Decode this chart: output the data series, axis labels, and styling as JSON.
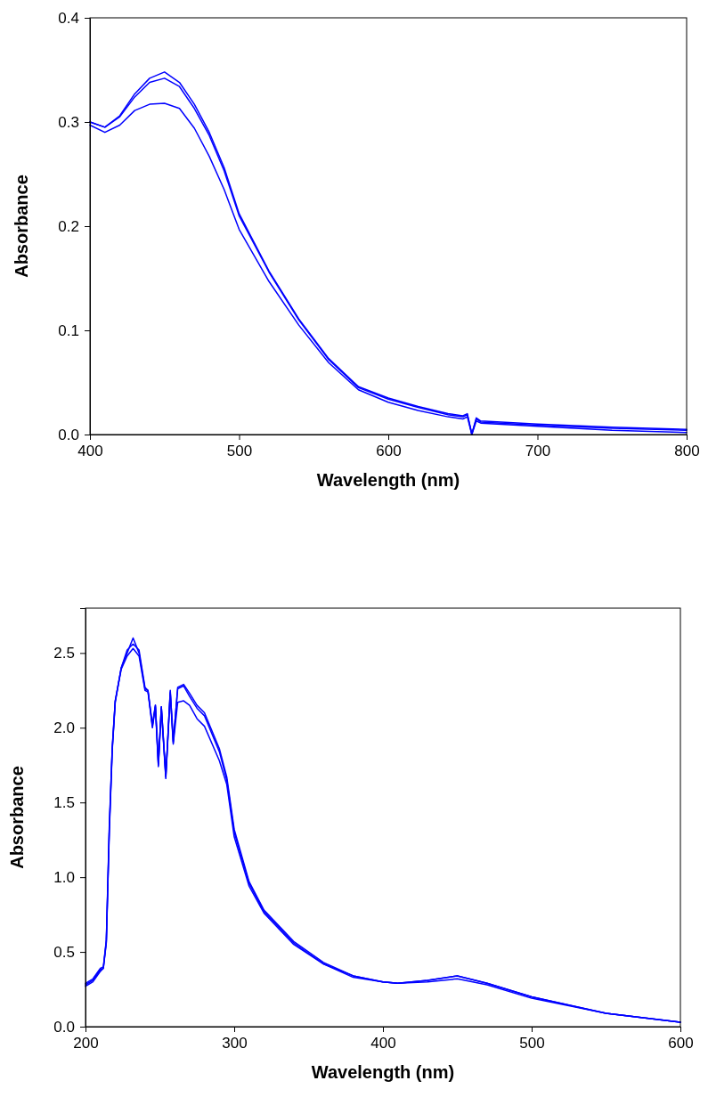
{
  "chart_data": [
    {
      "type": "line",
      "xlabel": "Wavelength (nm)",
      "ylabel": "Absorbance",
      "xlim": [
        400,
        800
      ],
      "xticks": [
        400,
        500,
        600,
        700,
        800
      ],
      "ylim": [
        0,
        0.4
      ],
      "yticks": [
        {
          "value": 0,
          "label": "0.0"
        },
        {
          "value": 0.1,
          "label": "0.1"
        },
        {
          "value": 0.2,
          "label": "0.2"
        },
        {
          "value": 0.3,
          "label": "0.3"
        },
        {
          "value": 0.4,
          "label": "0.4"
        }
      ],
      "grid": false,
      "line_style": "solid",
      "marker": "none",
      "x": [
        400,
        410,
        420,
        430,
        440,
        450,
        460,
        470,
        480,
        490,
        500,
        520,
        540,
        560,
        580,
        600,
        620,
        640,
        650,
        653,
        656,
        659,
        662,
        700,
        750,
        800
      ],
      "series": [
        {
          "color": "#0000ff",
          "values": [
            0.3,
            0.295,
            0.306,
            0.327,
            0.342,
            0.348,
            0.338,
            0.317,
            0.29,
            0.256,
            0.212,
            0.157,
            0.111,
            0.073,
            0.046,
            0.035,
            0.027,
            0.02,
            0.018,
            0.02,
            0.0,
            0.016,
            0.013,
            0.01,
            0.007,
            0.005
          ]
        },
        {
          "color": "#0000ff",
          "values": [
            0.3,
            0.295,
            0.305,
            0.324,
            0.338,
            0.342,
            0.334,
            0.313,
            0.287,
            0.253,
            0.21,
            0.156,
            0.11,
            0.072,
            0.045,
            0.034,
            0.026,
            0.019,
            0.017,
            0.019,
            0.001,
            0.015,
            0.012,
            0.009,
            0.006,
            0.004
          ]
        },
        {
          "color": "#0000ff",
          "values": [
            0.297,
            0.29,
            0.297,
            0.311,
            0.317,
            0.318,
            0.313,
            0.294,
            0.267,
            0.235,
            0.197,
            0.147,
            0.105,
            0.069,
            0.043,
            0.031,
            0.023,
            0.017,
            0.015,
            0.017,
            0.0,
            0.013,
            0.011,
            0.008,
            0.004,
            0.002
          ]
        }
      ]
    },
    {
      "type": "line",
      "xlabel": "Wavelength (nm)",
      "ylabel": "Absorbance",
      "xlim": [
        200,
        600
      ],
      "xticks": [
        200,
        300,
        400,
        500,
        600
      ],
      "ylim": [
        0,
        2.8
      ],
      "yticks": [
        {
          "value": 0,
          "label": "0.0"
        },
        {
          "value": 0.5,
          "label": "0.5"
        },
        {
          "value": 1,
          "label": "1.0"
        },
        {
          "value": 1.5,
          "label": "1.5"
        },
        {
          "value": 2,
          "label": "2.0"
        },
        {
          "value": 2.5,
          "label": "2.5"
        }
      ],
      "grid": false,
      "line_style": "solid",
      "marker": "none",
      "x": [
        200,
        205,
        210,
        212,
        214,
        216,
        218,
        220,
        224,
        228,
        232,
        236,
        240,
        242,
        245,
        247,
        249,
        251,
        254,
        257,
        259,
        262,
        266,
        270,
        275,
        280,
        290,
        295,
        300,
        310,
        320,
        340,
        360,
        380,
        400,
        410,
        430,
        450,
        470,
        500,
        550,
        600
      ],
      "series": [
        {
          "color": "#0000ff",
          "values": [
            0.28,
            0.31,
            0.38,
            0.39,
            0.57,
            1.32,
            1.86,
            2.18,
            2.4,
            2.5,
            2.6,
            2.5,
            2.26,
            2.25,
            2.01,
            2.15,
            1.75,
            2.14,
            1.67,
            2.25,
            1.9,
            2.27,
            2.29,
            2.23,
            2.15,
            2.1,
            1.86,
            1.67,
            1.32,
            0.97,
            0.78,
            0.57,
            0.43,
            0.34,
            0.3,
            0.29,
            0.31,
            0.34,
            0.29,
            0.2,
            0.09,
            0.03
          ]
        },
        {
          "color": "#0000ff",
          "values": [
            0.27,
            0.3,
            0.37,
            0.39,
            0.56,
            1.3,
            1.85,
            2.17,
            2.4,
            2.52,
            2.56,
            2.52,
            2.27,
            2.25,
            2.02,
            2.15,
            1.76,
            2.14,
            1.68,
            2.24,
            1.91,
            2.26,
            2.28,
            2.21,
            2.13,
            2.08,
            1.84,
            1.65,
            1.3,
            0.96,
            0.77,
            0.56,
            0.42,
            0.34,
            0.3,
            0.29,
            0.31,
            0.34,
            0.29,
            0.2,
            0.09,
            0.03
          ]
        },
        {
          "color": "#0000ff",
          "values": [
            0.29,
            0.32,
            0.39,
            0.4,
            0.58,
            1.34,
            1.87,
            2.18,
            2.39,
            2.48,
            2.53,
            2.48,
            2.25,
            2.24,
            2.0,
            2.14,
            1.74,
            2.13,
            1.66,
            2.23,
            1.89,
            2.17,
            2.18,
            2.15,
            2.06,
            2.01,
            1.78,
            1.62,
            1.27,
            0.94,
            0.76,
            0.55,
            0.42,
            0.33,
            0.3,
            0.29,
            0.3,
            0.32,
            0.28,
            0.19,
            0.09,
            0.03
          ]
        }
      ]
    }
  ]
}
